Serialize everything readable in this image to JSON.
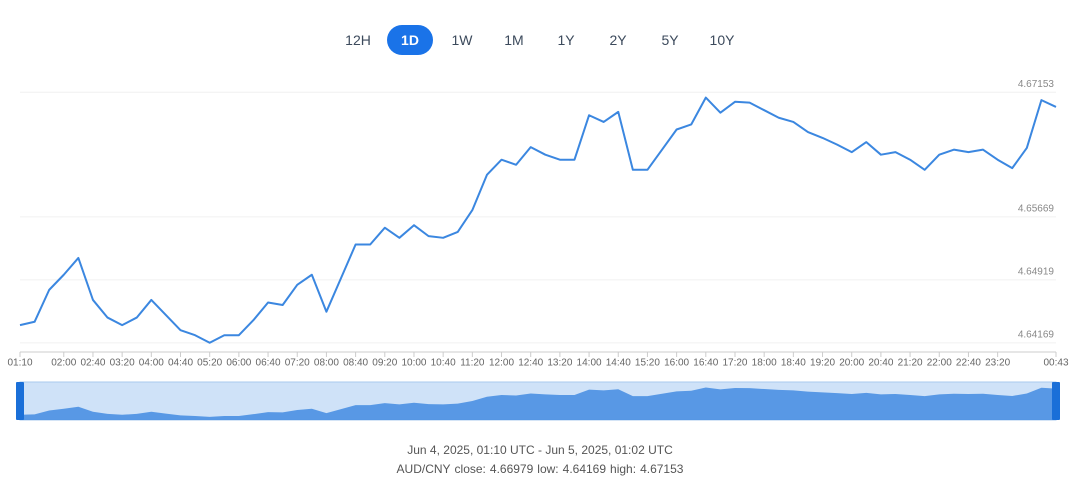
{
  "range_buttons": [
    "12H",
    "1D",
    "1W",
    "1M",
    "1Y",
    "2Y",
    "5Y",
    "10Y"
  ],
  "selected_range": "1D",
  "chart_data": {
    "type": "line",
    "color": "#3b87e0",
    "categories": [
      "01:10",
      null,
      null,
      "02:00",
      null,
      "02:40",
      null,
      "03:20",
      null,
      "04:00",
      null,
      "04:40",
      null,
      "05:20",
      null,
      "06:00",
      null,
      "06:40",
      null,
      "07:20",
      null,
      "08:00",
      null,
      "08:40",
      null,
      "09:20",
      null,
      "10:00",
      null,
      "10:40",
      null,
      "11:20",
      null,
      "12:00",
      null,
      "12:40",
      null,
      "13:20",
      null,
      "14:00",
      null,
      "14:40",
      null,
      "15:20",
      null,
      "16:00",
      null,
      "16:40",
      null,
      "17:20",
      null,
      "18:00",
      null,
      "18:40",
      null,
      "19:20",
      null,
      "20:00",
      null,
      "20:40",
      null,
      "21:20",
      null,
      "22:00",
      null,
      "22:40",
      null,
      "23:20",
      null,
      null,
      null,
      "00:43"
    ],
    "values": [
      4.6438,
      4.6442,
      4.648,
      4.6498,
      4.6518,
      4.6468,
      4.6447,
      4.6438,
      4.6447,
      4.6468,
      4.645,
      4.6432,
      4.6426,
      4.6417,
      4.6426,
      4.6426,
      4.6444,
      4.6465,
      4.6462,
      4.6486,
      4.6498,
      4.6454,
      4.6494,
      4.6534,
      4.6534,
      4.6554,
      4.6542,
      4.6557,
      4.6544,
      4.6542,
      4.6549,
      4.6575,
      4.6617,
      4.6635,
      4.6629,
      4.665,
      4.6641,
      4.6635,
      4.6635,
      4.6688,
      4.668,
      4.6692,
      4.6623,
      4.6623,
      4.6647,
      4.6671,
      4.6677,
      4.6709,
      4.6691,
      4.6704,
      4.6703,
      4.6694,
      4.6685,
      4.668,
      4.6668,
      4.6661,
      4.6653,
      4.6644,
      4.6656,
      4.6641,
      4.6644,
      4.6635,
      4.6623,
      4.6641,
      4.6647,
      4.6644,
      4.6647,
      4.6635,
      4.6625,
      4.6649,
      4.6706,
      4.66979
    ],
    "ylim": [
      4.6406,
      4.6724
    ],
    "yticks": [
      4.64169,
      4.64919,
      4.65669,
      4.67153
    ],
    "grid": true,
    "period": "Jun 4, 2025, 01:10 UTC - Jun 5, 2025, 01:02 UTC",
    "pair": "AUD/CNY",
    "stats": [
      {
        "label": "close:",
        "value": 4.66979
      },
      {
        "label": "low:",
        "value": 4.64169
      },
      {
        "label": "high:",
        "value": 4.67153
      }
    ]
  }
}
